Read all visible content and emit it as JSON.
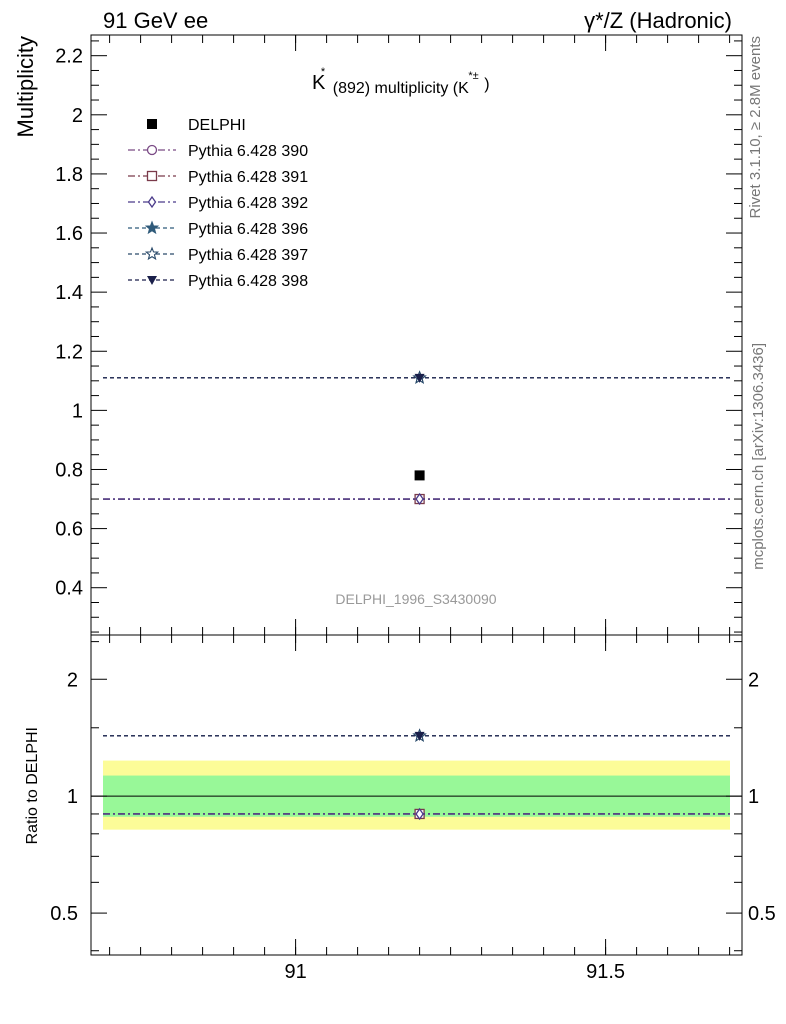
{
  "header": {
    "left": "91 GeV ee",
    "right": "γ*/Z (Hadronic)"
  },
  "side_notes": {
    "rivet": "Rivet 3.1.10, ≥ 2.8M events",
    "mcplots": "mcplots.cern.ch [arXiv:1306.3436]"
  },
  "chart_data": [
    {
      "type": "scatter",
      "title_main": "K",
      "title_sup": "*",
      "title_rest": "(892) multiplicity (K",
      "title_sup2": "*±",
      "title_close": ")",
      "ylabel": "Multiplicity",
      "analysis_tag": "DELPHI_1996_S3430090",
      "xlim": [
        90.67,
        91.72
      ],
      "ylim": [
        0.24,
        2.27
      ],
      "y_ticks": [
        "0.4",
        "0.6",
        "0.8",
        "1",
        "1.2",
        "1.4",
        "1.6",
        "1.8",
        "2",
        "2.2"
      ],
      "y_tick_values": [
        0.4,
        0.6,
        0.8,
        1.0,
        1.2,
        1.4,
        1.6,
        1.8,
        2.0,
        2.2
      ],
      "data": {
        "name": "DELPHI",
        "x": 91.2,
        "y": 0.78,
        "color": "#000000",
        "marker": "square"
      },
      "series": [
        {
          "name": "Pythia 6.428 390",
          "y": 0.7,
          "color": "#7a4a85",
          "marker": "circle-open",
          "dash": "dashdot"
        },
        {
          "name": "Pythia 6.428 391",
          "y": 0.7,
          "color": "#7a3a4a",
          "marker": "square-open",
          "dash": "dashdot"
        },
        {
          "name": "Pythia 6.428 392",
          "y": 0.7,
          "color": "#4a3a8a",
          "marker": "diamond-open",
          "dash": "dashdot"
        },
        {
          "name": "Pythia 6.428 396",
          "y": 1.11,
          "color": "#2f5a7a",
          "marker": "star-filled",
          "dash": "dashed"
        },
        {
          "name": "Pythia 6.428 397",
          "y": 1.11,
          "color": "#2a4a6a",
          "marker": "star-open",
          "dash": "dashed"
        },
        {
          "name": "Pythia 6.428 398",
          "y": 1.11,
          "color": "#1a1f4a",
          "marker": "triangle-down-filled",
          "dash": "dashed"
        }
      ]
    },
    {
      "type": "scatter",
      "ylabel": "Ratio to DELPHI",
      "xlim": [
        90.67,
        91.72
      ],
      "ylim": [
        0.39,
        2.6
      ],
      "log_y": true,
      "y_ticks_left": [
        "0.5",
        "1",
        "2"
      ],
      "y_ticks_right": [
        "0.5",
        "1",
        "2"
      ],
      "y_tick_values": [
        0.5,
        1.0,
        2.0
      ],
      "x_ticks": [
        "91",
        "91.5"
      ],
      "x_tick_values": [
        91.0,
        91.5
      ],
      "band_inner": [
        0.885,
        1.13
      ],
      "band_outer": [
        0.82,
        1.235
      ],
      "band_inner_color": "#98f898",
      "band_outer_color": "#fcfc98",
      "ratios": [
        {
          "series": "Pythia 6.428 390",
          "y": 0.9
        },
        {
          "series": "Pythia 6.428 391",
          "y": 0.9
        },
        {
          "series": "Pythia 6.428 392",
          "y": 0.9
        },
        {
          "series": "Pythia 6.428 396",
          "y": 1.43
        },
        {
          "series": "Pythia 6.428 397",
          "y": 1.43
        },
        {
          "series": "Pythia 6.428 398",
          "y": 1.43
        }
      ]
    }
  ]
}
